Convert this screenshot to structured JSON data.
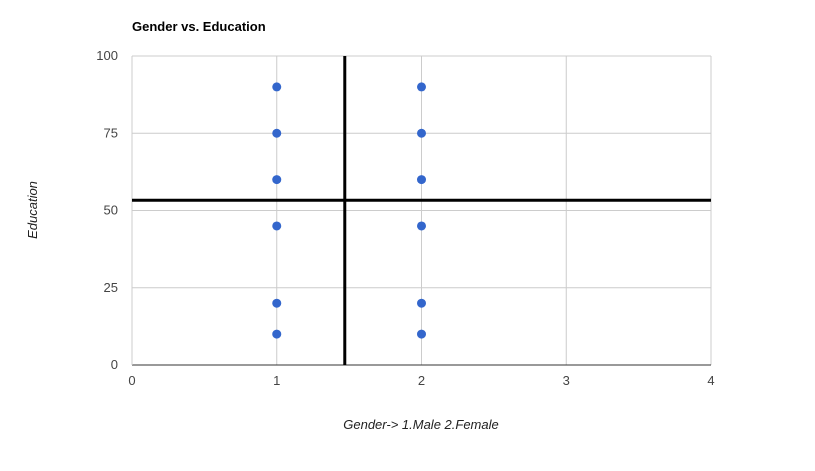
{
  "chart_data": {
    "type": "scatter",
    "title": "Gender vs. Education",
    "xlabel": "Gender-> 1.Male 2.Female",
    "ylabel": "Education",
    "xlim": [
      0,
      4
    ],
    "ylim": [
      0,
      100
    ],
    "x_ticks": [
      "0",
      "1",
      "2",
      "3",
      "4"
    ],
    "y_ticks": [
      "0",
      "25",
      "50",
      "75",
      "100"
    ],
    "grid": true,
    "legend": "none",
    "point_color": "#3366cc",
    "series": [
      {
        "points": [
          {
            "x": 1,
            "y": 90
          },
          {
            "x": 1,
            "y": 75
          },
          {
            "x": 1,
            "y": 60
          },
          {
            "x": 1,
            "y": 45
          },
          {
            "x": 1,
            "y": 20
          },
          {
            "x": 1,
            "y": 10
          },
          {
            "x": 2,
            "y": 90
          },
          {
            "x": 2,
            "y": 75
          },
          {
            "x": 2,
            "y": 60
          },
          {
            "x": 2,
            "y": 45
          },
          {
            "x": 2,
            "y": 20
          },
          {
            "x": 2,
            "y": 10
          }
        ]
      }
    ],
    "reference_lines": {
      "vertical_x": 1.47,
      "horizontal_y": 53.3,
      "color": "#000000"
    }
  }
}
